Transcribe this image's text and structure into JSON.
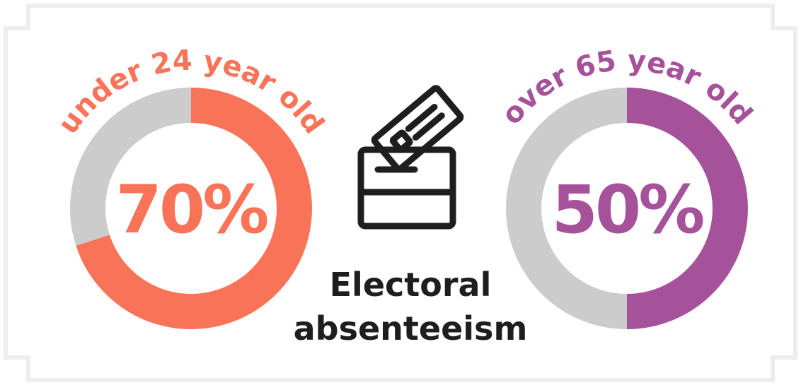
{
  "chart_data": [
    {
      "type": "pie",
      "label": "under 24 year old",
      "value_label": "70%",
      "values": [
        70,
        30
      ],
      "colors": [
        "#f87357",
        "#cccccc"
      ]
    },
    {
      "type": "pie",
      "label": "over 65 year old",
      "value_label": "50%",
      "values": [
        50,
        50
      ],
      "colors": [
        "#a5529b",
        "#cccccc"
      ]
    }
  ],
  "center": {
    "title_line1": "Electoral",
    "title_line2": "absenteeism",
    "icon": "ballot-box-icon"
  },
  "colors": {
    "frame": "#ededed",
    "text": "#1e1e1e"
  }
}
